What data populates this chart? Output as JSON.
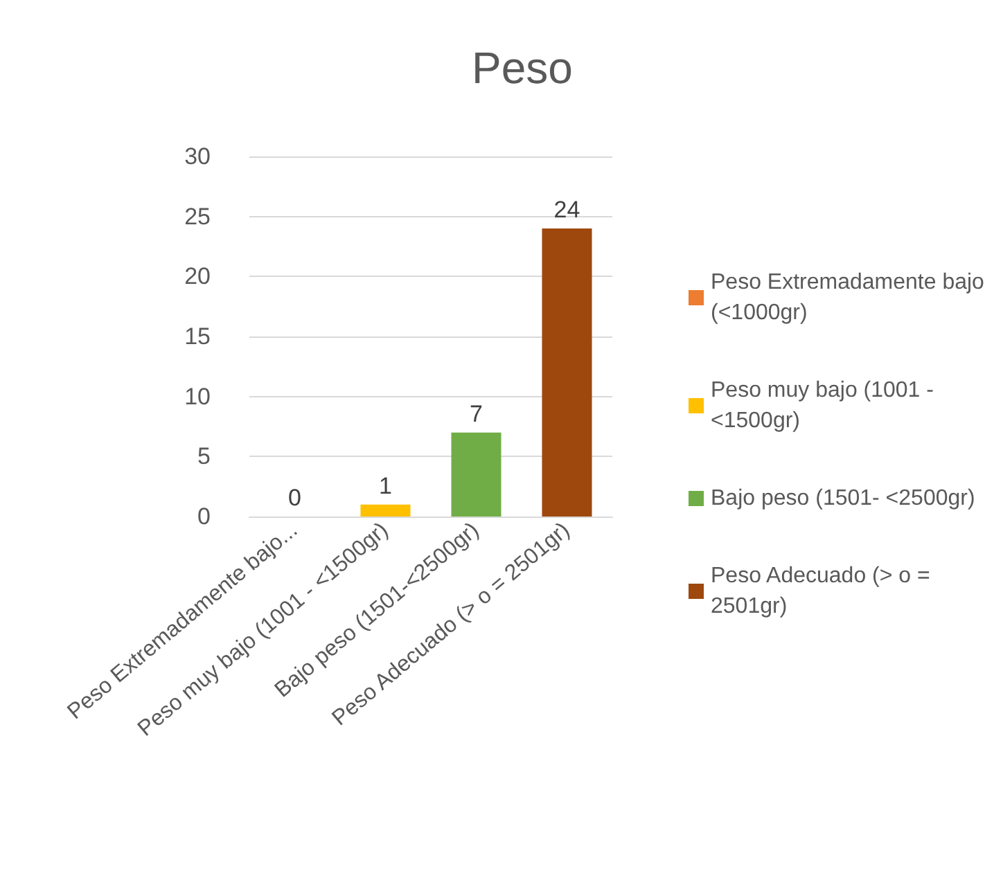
{
  "chart_data": {
    "type": "bar",
    "title": "Peso",
    "categories": [
      "Peso Extremadamente bajo...",
      "Peso muy bajo (1001 - <1500gr)",
      "Bajo peso (1501-<2500gr)",
      "Peso Adecuado (> o = 2501gr)"
    ],
    "series": [
      {
        "name": "Peso Extremadamente bajo (<1000gr)",
        "color": "#ed7d31",
        "values": [
          0,
          null,
          null,
          null
        ]
      },
      {
        "name": "Peso muy bajo (1001 - <1500gr)",
        "color": "#ffc000",
        "values": [
          null,
          1,
          null,
          null
        ]
      },
      {
        "name": "Bajo peso (1501- <2500gr)",
        "color": "#70ad47",
        "values": [
          null,
          null,
          7,
          null
        ]
      },
      {
        "name": "Peso Adecuado (> o = 2501gr)",
        "color": "#9e480e",
        "values": [
          null,
          null,
          null,
          24
        ]
      }
    ],
    "ylim": [
      0,
      30
    ],
    "yticks": [
      0,
      5,
      10,
      15,
      20,
      25,
      30
    ],
    "grid": "y",
    "legend": "right",
    "data_labels": true
  }
}
